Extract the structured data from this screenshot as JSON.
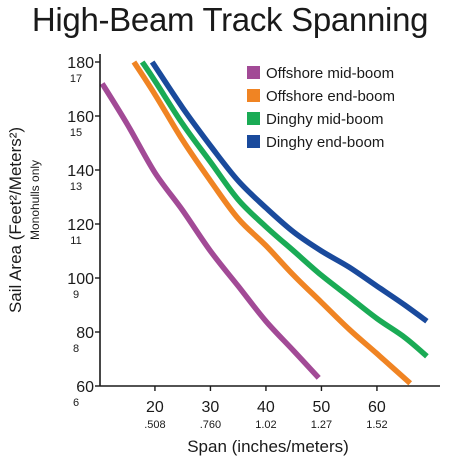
{
  "chart_data": {
    "type": "line",
    "title": "High-Beam Track Spanning",
    "xlabel": "Span (inches/meters)",
    "ylabel": "Sail Area (Feet²/Meters²)",
    "ylabel_sub": "Monohulls only",
    "xlim": [
      10,
      69
    ],
    "ylim": [
      60,
      180
    ],
    "x_ticks": [
      {
        "value": 20,
        "label": "20",
        "sub": ".508"
      },
      {
        "value": 30,
        "label": "30",
        "sub": ".760"
      },
      {
        "value": 40,
        "label": "40",
        "sub": "1.02"
      },
      {
        "value": 50,
        "label": "50",
        "sub": "1.27"
      },
      {
        "value": 60,
        "label": "60",
        "sub": "1.52"
      }
    ],
    "y_ticks": [
      {
        "value": 60,
        "label": "60",
        "sub": "6"
      },
      {
        "value": 80,
        "label": "80",
        "sub": "8"
      },
      {
        "value": 100,
        "label": "100",
        "sub": "9"
      },
      {
        "value": 120,
        "label": "120",
        "sub": "11"
      },
      {
        "value": 140,
        "label": "140",
        "sub": "13"
      },
      {
        "value": 160,
        "label": "160",
        "sub": "15"
      },
      {
        "value": 180,
        "label": "180",
        "sub": "17"
      }
    ],
    "grid": false,
    "legend_position": "top-right",
    "series": [
      {
        "name": "Offshore mid-boom",
        "color": "#a24a96",
        "points": [
          [
            10.5,
            172
          ],
          [
            15,
            157
          ],
          [
            20,
            139
          ],
          [
            25,
            125
          ],
          [
            30,
            110
          ],
          [
            35,
            97
          ],
          [
            40,
            84
          ],
          [
            45,
            73
          ],
          [
            49.5,
            63
          ]
        ]
      },
      {
        "name": "Offshore end-boom",
        "color": "#f08423",
        "points": [
          [
            16.2,
            180
          ],
          [
            20,
            168
          ],
          [
            25,
            151
          ],
          [
            30,
            136
          ],
          [
            35,
            122
          ],
          [
            40,
            112
          ],
          [
            45,
            101
          ],
          [
            50,
            91
          ],
          [
            55,
            81
          ],
          [
            60,
            72
          ],
          [
            66,
            61
          ]
        ]
      },
      {
        "name": "Dinghy mid-boom",
        "color": "#1aab55",
        "points": [
          [
            17.7,
            180
          ],
          [
            20,
            173
          ],
          [
            25,
            157
          ],
          [
            30,
            143
          ],
          [
            35,
            129
          ],
          [
            40,
            119
          ],
          [
            45,
            110
          ],
          [
            50,
            101
          ],
          [
            55,
            93
          ],
          [
            60,
            85
          ],
          [
            65,
            78
          ],
          [
            69,
            71
          ]
        ]
      },
      {
        "name": "Dinghy end-boom",
        "color": "#1a4a9c",
        "points": [
          [
            19.5,
            180
          ],
          [
            25,
            163
          ],
          [
            30,
            149
          ],
          [
            35,
            136
          ],
          [
            40,
            126
          ],
          [
            45,
            117
          ],
          [
            50,
            110
          ],
          [
            55,
            104
          ],
          [
            60,
            97
          ],
          [
            65,
            90
          ],
          [
            69,
            84
          ]
        ]
      }
    ]
  }
}
